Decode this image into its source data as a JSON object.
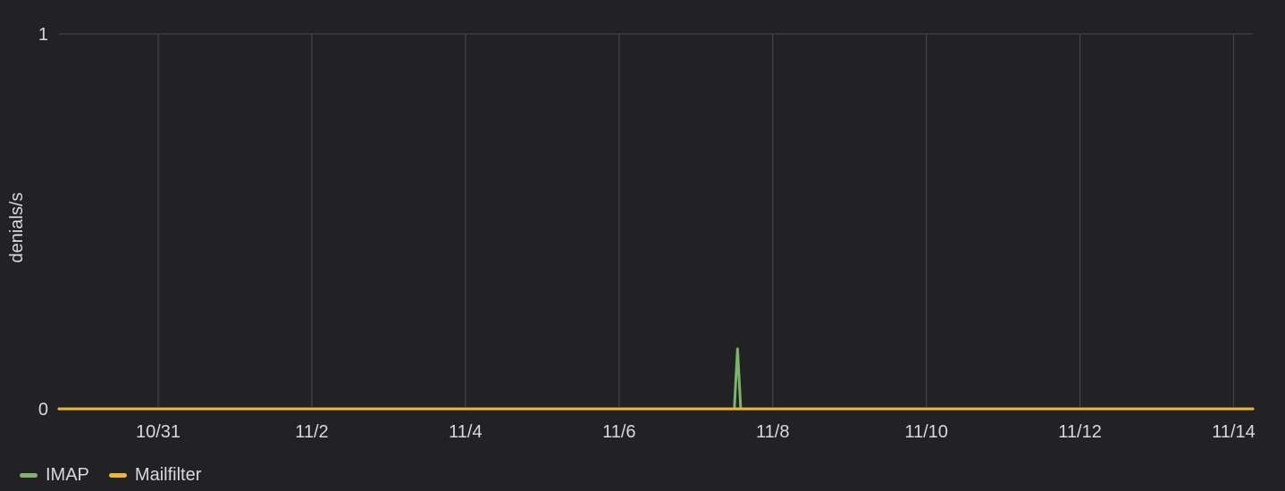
{
  "chart_data": {
    "type": "line",
    "ylabel": "denials/s",
    "yticks": [
      "0",
      "1"
    ],
    "ylim": [
      0,
      1
    ],
    "xticks": [
      "10/31",
      "11/2",
      "11/4",
      "11/6",
      "11/8",
      "11/10",
      "11/12",
      "11/14"
    ],
    "xlim": [
      "10/29 17:00",
      "11/14 06:00"
    ],
    "grid": true,
    "legend_position": "bottom-left",
    "series": [
      {
        "name": "IMAP",
        "color": "#7eb26d",
        "x": [
          "10/29 17:00",
          "11/7 12:00",
          "11/7 13:00",
          "11/7 14:00",
          "11/14 06:00"
        ],
        "values": [
          0,
          0,
          0.16,
          0,
          0
        ]
      },
      {
        "name": "Mailfilter",
        "color": "#eab839",
        "x": [
          "10/29 17:00",
          "11/14 06:00"
        ],
        "values": [
          0,
          0
        ]
      }
    ]
  }
}
